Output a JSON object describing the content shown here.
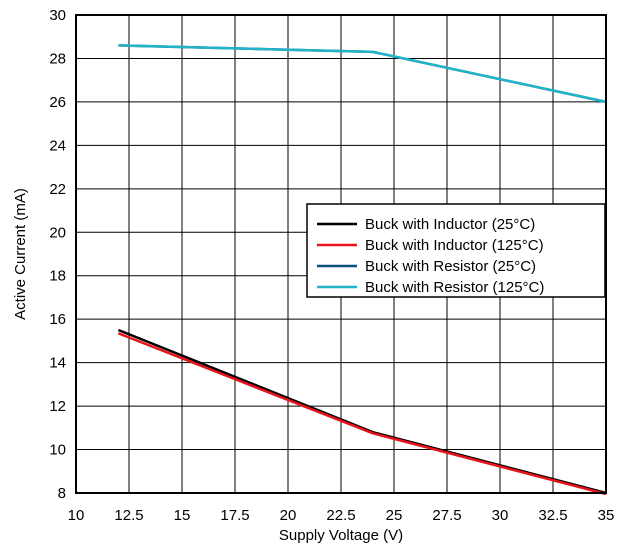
{
  "chart_data": {
    "type": "line",
    "xlabel": "Supply Voltage (V)",
    "ylabel": "Active Current (mA)",
    "xlim": [
      10,
      35
    ],
    "ylim": [
      8,
      30
    ],
    "x_ticks": [
      10,
      12.5,
      15,
      17.5,
      20,
      22.5,
      25,
      27.5,
      30,
      32.5,
      35
    ],
    "x_tick_labels": [
      "10",
      "12.5",
      "15",
      "17.5",
      "20",
      "22.5",
      "25",
      "27.5",
      "30",
      "32.5",
      "35"
    ],
    "y_ticks": [
      8,
      10,
      12,
      14,
      16,
      18,
      20,
      22,
      24,
      26,
      28,
      30
    ],
    "y_tick_labels": [
      "8",
      "10",
      "12",
      "14",
      "16",
      "18",
      "20",
      "22",
      "24",
      "26",
      "28",
      "30"
    ],
    "grid": true,
    "legend_position": "right",
    "series": [
      {
        "name": "Buck with Inductor (25°C)",
        "color": "#000000",
        "x": [
          12,
          24,
          35
        ],
        "y": [
          15.5,
          10.8,
          8.0
        ]
      },
      {
        "name": "Buck with Inductor (125°C)",
        "color": "#e8141c",
        "x": [
          12,
          24,
          35
        ],
        "y": [
          15.35,
          10.75,
          7.95
        ]
      },
      {
        "name": "Buck with Resistor (25°C)",
        "color": "#0d4e7a",
        "x": [
          12,
          24,
          35
        ],
        "y": [
          28.6,
          28.3,
          26.0
        ]
      },
      {
        "name": "Buck with Resistor (125°C)",
        "color": "#21b3c8",
        "x": [
          12,
          24,
          35
        ],
        "y": [
          28.6,
          28.3,
          26.0
        ]
      }
    ]
  }
}
